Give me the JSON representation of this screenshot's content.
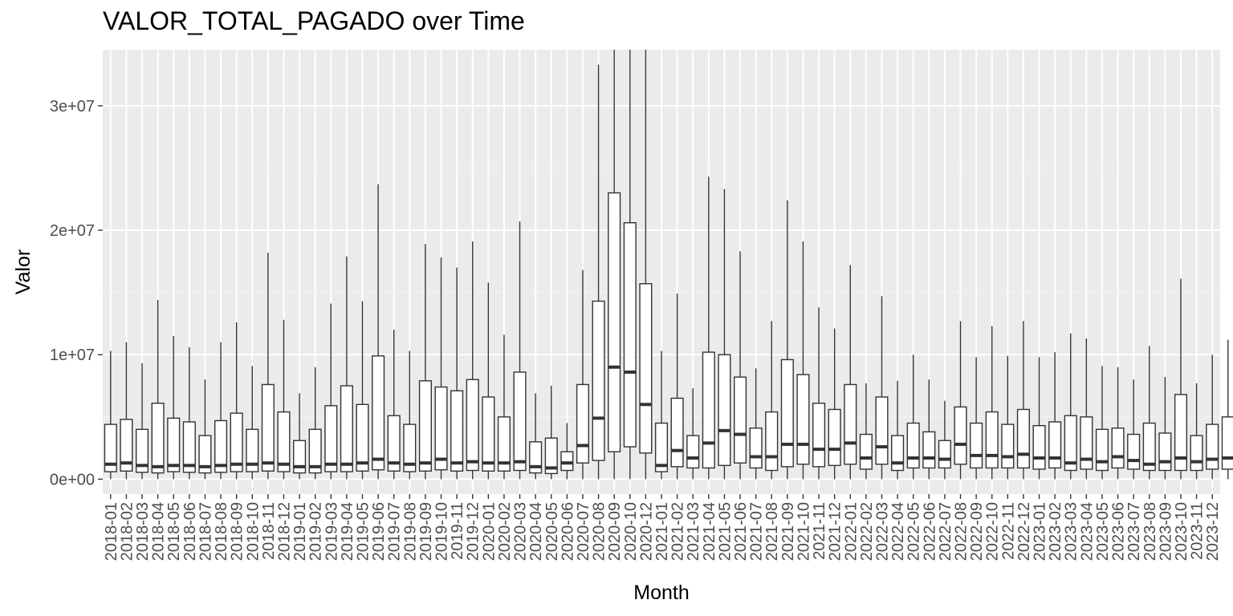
{
  "chart_data": {
    "type": "boxplot",
    "title": "VALOR_TOTAL_PAGADO over Time",
    "xlabel": "Month",
    "ylabel": "Valor",
    "ylim": [
      -1200000,
      34500000
    ],
    "y_ticks": [
      0,
      10000000,
      20000000,
      30000000
    ],
    "y_tick_labels": [
      "0e+00",
      "1e+07",
      "2e+07",
      "3e+07"
    ],
    "grid": true,
    "colors": {
      "panel": "#EBEBEB",
      "grid_major": "#FFFFFF",
      "grid_minor": "#F4F4F4",
      "box_fill": "#FFFFFF",
      "box_line": "#333333",
      "axis_text": "#4D4D4D"
    },
    "categories": [
      "2018-01",
      "2018-02",
      "2018-03",
      "2018-04",
      "2018-05",
      "2018-06",
      "2018-07",
      "2018-08",
      "2018-09",
      "2018-10",
      "2018-11",
      "2018-12",
      "2019-01",
      "2019-02",
      "2019-03",
      "2019-04",
      "2019-05",
      "2019-06",
      "2019-07",
      "2019-08",
      "2019-09",
      "2019-10",
      "2019-11",
      "2019-12",
      "2020-01",
      "2020-02",
      "2020-03",
      "2020-04",
      "2020-05",
      "2020-06",
      "2020-07",
      "2020-08",
      "2020-09",
      "2020-10",
      "2020-12",
      "2021-01",
      "2021-02",
      "2021-03",
      "2021-04",
      "2021-05",
      "2021-06",
      "2021-07",
      "2021-08",
      "2021-09",
      "2021-10",
      "2021-11",
      "2021-12",
      "2022-01",
      "2022-02",
      "2022-03",
      "2022-04",
      "2022-05",
      "2022-06",
      "2022-07",
      "2022-08",
      "2022-09",
      "2022-10",
      "2022-11",
      "2022-12",
      "2023-01",
      "2023-02",
      "2023-03",
      "2023-04",
      "2023-05",
      "2023-06",
      "2023-07",
      "2023-08",
      "2023-09",
      "2023-10",
      "2023-11",
      "2023-12"
    ],
    "boxes": [
      {
        "low": 0,
        "q1": 600000,
        "median": 1200000,
        "q3": 4400000,
        "high": 10300000
      },
      {
        "low": 0,
        "q1": 650000,
        "median": 1300000,
        "q3": 4800000,
        "high": 11000000
      },
      {
        "low": 0,
        "q1": 550000,
        "median": 1100000,
        "q3": 4000000,
        "high": 9300000
      },
      {
        "low": 0,
        "q1": 500000,
        "median": 1000000,
        "q3": 6100000,
        "high": 14400000
      },
      {
        "low": 0,
        "q1": 600000,
        "median": 1100000,
        "q3": 4900000,
        "high": 11500000
      },
      {
        "low": 0,
        "q1": 550000,
        "median": 1100000,
        "q3": 4600000,
        "high": 10600000
      },
      {
        "low": 0,
        "q1": 500000,
        "median": 1000000,
        "q3": 3500000,
        "high": 8000000
      },
      {
        "low": 0,
        "q1": 550000,
        "median": 1100000,
        "q3": 4700000,
        "high": 11000000
      },
      {
        "low": 0,
        "q1": 600000,
        "median": 1200000,
        "q3": 5300000,
        "high": 12600000
      },
      {
        "low": 0,
        "q1": 600000,
        "median": 1200000,
        "q3": 4000000,
        "high": 9100000
      },
      {
        "low": 0,
        "q1": 650000,
        "median": 1300000,
        "q3": 7600000,
        "high": 18200000
      },
      {
        "low": 0,
        "q1": 600000,
        "median": 1200000,
        "q3": 5400000,
        "high": 12800000
      },
      {
        "low": 0,
        "q1": 500000,
        "median": 1000000,
        "q3": 3100000,
        "high": 6900000
      },
      {
        "low": 0,
        "q1": 500000,
        "median": 1000000,
        "q3": 4000000,
        "high": 9000000
      },
      {
        "low": 0,
        "q1": 600000,
        "median": 1200000,
        "q3": 5900000,
        "high": 14100000
      },
      {
        "low": 0,
        "q1": 600000,
        "median": 1200000,
        "q3": 7500000,
        "high": 17900000
      },
      {
        "low": 0,
        "q1": 650000,
        "median": 1300000,
        "q3": 6000000,
        "high": 14300000
      },
      {
        "low": 0,
        "q1": 750000,
        "median": 1600000,
        "q3": 9900000,
        "high": 23700000
      },
      {
        "low": 0,
        "q1": 650000,
        "median": 1300000,
        "q3": 5100000,
        "high": 12000000
      },
      {
        "low": 0,
        "q1": 600000,
        "median": 1200000,
        "q3": 4400000,
        "high": 10300000
      },
      {
        "low": 0,
        "q1": 650000,
        "median": 1300000,
        "q3": 7900000,
        "high": 18900000
      },
      {
        "low": 0,
        "q1": 750000,
        "median": 1600000,
        "q3": 7400000,
        "high": 17800000
      },
      {
        "low": 0,
        "q1": 650000,
        "median": 1300000,
        "q3": 7100000,
        "high": 17000000
      },
      {
        "low": 0,
        "q1": 700000,
        "median": 1400000,
        "q3": 8000000,
        "high": 19100000
      },
      {
        "low": 0,
        "q1": 650000,
        "median": 1300000,
        "q3": 6600000,
        "high": 15800000
      },
      {
        "low": 0,
        "q1": 650000,
        "median": 1300000,
        "q3": 5000000,
        "high": 11600000
      },
      {
        "low": 0,
        "q1": 700000,
        "median": 1400000,
        "q3": 8600000,
        "high": 20700000
      },
      {
        "low": 0,
        "q1": 500000,
        "median": 1000000,
        "q3": 3000000,
        "high": 6900000
      },
      {
        "low": 0,
        "q1": 450000,
        "median": 900000,
        "q3": 3300000,
        "high": 7500000
      },
      {
        "low": 0,
        "q1": 700000,
        "median": 1300000,
        "q3": 2200000,
        "high": 4500000
      },
      {
        "low": 0,
        "q1": 1300000,
        "median": 2700000,
        "q3": 7600000,
        "high": 16800000
      },
      {
        "low": 0,
        "q1": 1500000,
        "median": 4900000,
        "q3": 14300000,
        "high": 33300000
      },
      {
        "low": 0,
        "q1": 2200000,
        "median": 9000000,
        "q3": 23000000,
        "high": 34500000
      },
      {
        "low": 0,
        "q1": 2600000,
        "median": 8600000,
        "q3": 20600000,
        "high": 34500000
      },
      {
        "low": 0,
        "q1": 2100000,
        "median": 6000000,
        "q3": 15700000,
        "high": 34500000
      },
      {
        "low": 0,
        "q1": 600000,
        "median": 1100000,
        "q3": 4500000,
        "high": 10300000
      },
      {
        "low": 0,
        "q1": 1000000,
        "median": 2300000,
        "q3": 6500000,
        "high": 14900000
      },
      {
        "low": 0,
        "q1": 900000,
        "median": 1700000,
        "q3": 3500000,
        "high": 7300000
      },
      {
        "low": 0,
        "q1": 900000,
        "median": 2900000,
        "q3": 10200000,
        "high": 24300000
      },
      {
        "low": 0,
        "q1": 1100000,
        "median": 3900000,
        "q3": 10000000,
        "high": 23300000
      },
      {
        "low": 0,
        "q1": 1300000,
        "median": 3600000,
        "q3": 8200000,
        "high": 18300000
      },
      {
        "low": 0,
        "q1": 900000,
        "median": 1800000,
        "q3": 4100000,
        "high": 8900000
      },
      {
        "low": 0,
        "q1": 700000,
        "median": 1800000,
        "q3": 5400000,
        "high": 12700000
      },
      {
        "low": 0,
        "q1": 1000000,
        "median": 2800000,
        "q3": 9600000,
        "high": 22400000
      },
      {
        "low": 0,
        "q1": 1200000,
        "median": 2800000,
        "q3": 8400000,
        "high": 19100000
      },
      {
        "low": 0,
        "q1": 1000000,
        "median": 2400000,
        "q3": 6100000,
        "high": 13800000
      },
      {
        "low": 0,
        "q1": 1100000,
        "median": 2400000,
        "q3": 5600000,
        "high": 12100000
      },
      {
        "low": 0,
        "q1": 1200000,
        "median": 2900000,
        "q3": 7600000,
        "high": 17200000
      },
      {
        "low": 0,
        "q1": 800000,
        "median": 1700000,
        "q3": 3600000,
        "high": 7700000
      },
      {
        "low": 0,
        "q1": 1200000,
        "median": 2600000,
        "q3": 6600000,
        "high": 14700000
      },
      {
        "low": 0,
        "q1": 700000,
        "median": 1300000,
        "q3": 3500000,
        "high": 7900000
      },
      {
        "low": 0,
        "q1": 900000,
        "median": 1700000,
        "q3": 4500000,
        "high": 10000000
      },
      {
        "low": 0,
        "q1": 900000,
        "median": 1700000,
        "q3": 3800000,
        "high": 8000000
      },
      {
        "low": 0,
        "q1": 900000,
        "median": 1600000,
        "q3": 3100000,
        "high": 6300000
      },
      {
        "low": 0,
        "q1": 1200000,
        "median": 2800000,
        "q3": 5800000,
        "high": 12700000
      },
      {
        "low": 0,
        "q1": 900000,
        "median": 1900000,
        "q3": 4500000,
        "high": 9800000
      },
      {
        "low": 0,
        "q1": 900000,
        "median": 1900000,
        "q3": 5400000,
        "high": 12300000
      },
      {
        "low": 0,
        "q1": 900000,
        "median": 1800000,
        "q3": 4400000,
        "high": 9900000
      },
      {
        "low": 0,
        "q1": 900000,
        "median": 2000000,
        "q3": 5600000,
        "high": 12700000
      },
      {
        "low": 0,
        "q1": 800000,
        "median": 1700000,
        "q3": 4300000,
        "high": 9800000
      },
      {
        "low": 0,
        "q1": 900000,
        "median": 1700000,
        "q3": 4600000,
        "high": 10200000
      },
      {
        "low": 0,
        "q1": 700000,
        "median": 1300000,
        "q3": 5100000,
        "high": 11700000
      },
      {
        "low": 0,
        "q1": 800000,
        "median": 1600000,
        "q3": 5000000,
        "high": 11300000
      },
      {
        "low": 0,
        "q1": 700000,
        "median": 1400000,
        "q3": 4000000,
        "high": 9100000
      },
      {
        "low": 0,
        "q1": 900000,
        "median": 1800000,
        "q3": 4100000,
        "high": 9000000
      },
      {
        "low": 0,
        "q1": 800000,
        "median": 1500000,
        "q3": 3600000,
        "high": 8000000
      },
      {
        "low": 0,
        "q1": 700000,
        "median": 1200000,
        "q3": 4500000,
        "high": 10700000
      },
      {
        "low": 0,
        "q1": 700000,
        "median": 1400000,
        "q3": 3700000,
        "high": 8200000
      },
      {
        "low": 0,
        "q1": 700000,
        "median": 1700000,
        "q3": 6800000,
        "high": 16100000
      },
      {
        "low": 0,
        "q1": 700000,
        "median": 1400000,
        "q3": 3500000,
        "high": 7700000
      },
      {
        "low": 0,
        "q1": 800000,
        "median": 1600000,
        "q3": 4400000,
        "high": 10000000
      },
      {
        "low": 0,
        "q1": 800000,
        "median": 1700000,
        "q3": 5000000,
        "high": 11200000
      }
    ]
  }
}
